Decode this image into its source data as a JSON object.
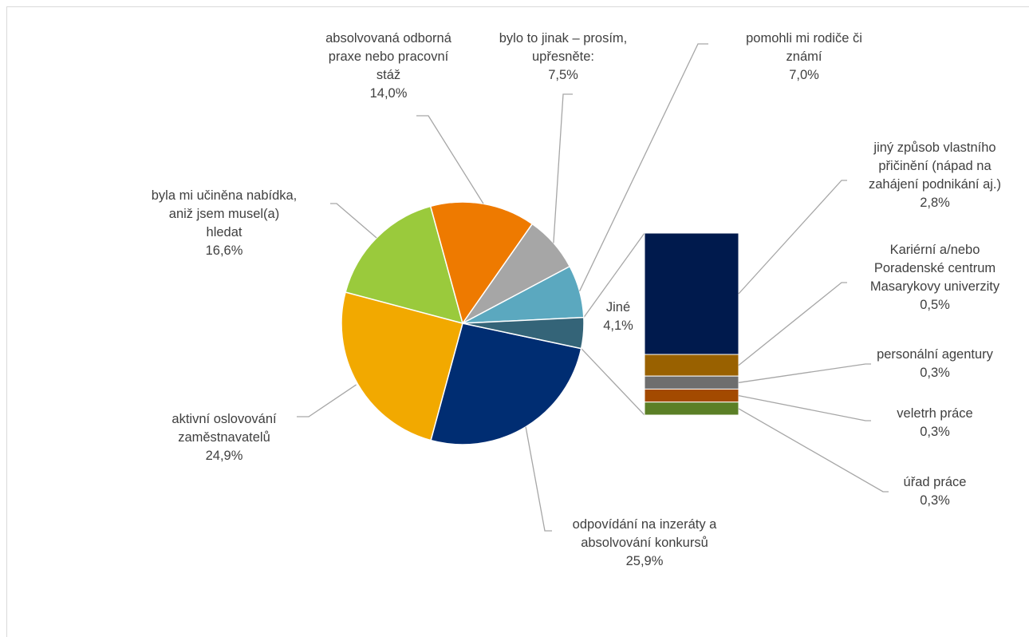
{
  "chart_data": {
    "type": "bar-of-pie",
    "title": "",
    "series": [
      {
        "values": [
          25.9,
          24.9,
          16.6,
          14.0,
          7.5,
          7.0,
          4.1
        ],
        "categories": [
          "odpovídání na inzeráty a absolvování konkursů",
          "aktivní oslovování zaměstnavatelů",
          "byla mi učiněna nabídka, aniž jsem musel(a) hledat",
          "absolvovaná odborná praxe nebo pracovní stáž",
          "bylo to jinak – prosím, upřesněte:",
          "pomohli mi rodiče či známí",
          "Jiné"
        ],
        "colors": [
          "#002D72",
          "#F2A900",
          "#9ACA3C",
          "#EE7A00",
          "#A6A6A6",
          "#5BA8BF",
          "#346478"
        ]
      },
      {
        "name": "Jiné",
        "values": [
          2.8,
          0.5,
          0.3,
          0.3,
          0.3
        ],
        "categories": [
          "jiný způsob vlastního přičinění (nápad na zahájení podnikání aj.)",
          "Kariérní a/nebo Poradenské centrum Masarykovy univerzity",
          "personální agentury",
          "veletrh práce",
          "úřad práce"
        ],
        "colors": [
          "#001A4D",
          "#996100",
          "#6E6E6E",
          "#A34A00",
          "#5B7F26"
        ]
      }
    ],
    "labels": {
      "pie": [
        {
          "lines": [
            "odpovídání na inzeráty a",
            "absolvování konkursů",
            "25,9%"
          ]
        },
        {
          "lines": [
            "aktivní oslovování",
            "zaměstnavatelů",
            "24,9%"
          ]
        },
        {
          "lines": [
            "byla mi učiněna nabídka,",
            "aniž jsem musel(a)",
            "hledat",
            "16,6%"
          ]
        },
        {
          "lines": [
            "absolvovaná odborná",
            "praxe nebo pracovní",
            "stáž",
            "14,0%"
          ]
        },
        {
          "lines": [
            "bylo to jinak – prosím,",
            "upřesněte:",
            "7,5%"
          ]
        },
        {
          "lines": [
            "pomohli mi rodiče či",
            "známí",
            "7,0%"
          ]
        },
        {
          "lines": [
            "Jiné",
            "4,1%"
          ]
        }
      ],
      "bar": [
        {
          "lines": [
            "jiný způsob vlastního",
            "přičinění (nápad na",
            "zahájení podnikání aj.)",
            "2,8%"
          ]
        },
        {
          "lines": [
            "Kariérní a/nebo",
            "Poradenské centrum",
            "Masarykovy univerzity",
            "0,5%"
          ]
        },
        {
          "lines": [
            "personální agentury",
            "0,3%"
          ]
        },
        {
          "lines": [
            "veletrh práce",
            "0,3%"
          ]
        },
        {
          "lines": [
            "úřad práce",
            "0,3%"
          ]
        }
      ]
    }
  }
}
